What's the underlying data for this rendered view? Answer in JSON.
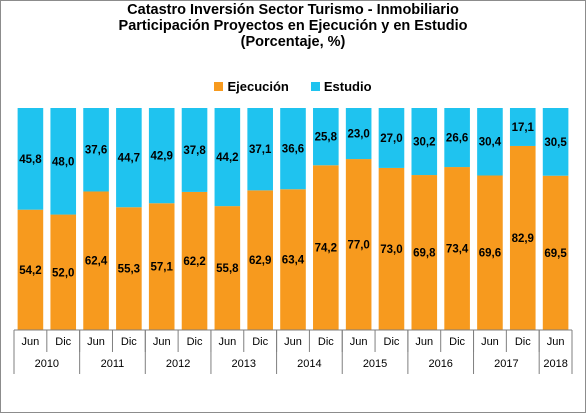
{
  "chart_data": {
    "type": "bar",
    "stacked": true,
    "title_lines": [
      "Catastro Inversión Sector Turismo - Inmobiliario",
      "Participación Proyectos en Ejecución y en Estudio",
      "(Porcentaje, %)"
    ],
    "legend_position": "top-center",
    "categories": [
      "Jun",
      "Dic",
      "Jun",
      "Dic",
      "Jun",
      "Dic",
      "Jun",
      "Dic",
      "Jun",
      "Dic",
      "Jun",
      "Dic",
      "Jun",
      "Dic",
      "Jun",
      "Dic",
      "Jun"
    ],
    "years": [
      {
        "label": "2010",
        "span": 2
      },
      {
        "label": "2011",
        "span": 2
      },
      {
        "label": "2012",
        "span": 2
      },
      {
        "label": "2013",
        "span": 2
      },
      {
        "label": "2014",
        "span": 2
      },
      {
        "label": "2015",
        "span": 2
      },
      {
        "label": "2016",
        "span": 2
      },
      {
        "label": "2017",
        "span": 2
      },
      {
        "label": "2018",
        "span": 1
      }
    ],
    "ylim": [
      0,
      100
    ],
    "grid": false,
    "series": [
      {
        "name": "Ejecución",
        "color": "#f79a1e",
        "values": [
          54.2,
          52.0,
          62.4,
          55.3,
          57.1,
          62.2,
          55.8,
          62.9,
          63.4,
          74.2,
          77.0,
          73.0,
          69.8,
          73.4,
          69.6,
          82.9,
          69.5
        ],
        "labels": [
          "54,2",
          "52,0",
          "62,4",
          "55,3",
          "57,1",
          "62,2",
          "55,8",
          "62,9",
          "63,4",
          "74,2",
          "77,0",
          "73,0",
          "69,8",
          "73,4",
          "69,6",
          "82,9",
          "69,5"
        ]
      },
      {
        "name": "Estudio",
        "color": "#1fc3ef",
        "values": [
          45.8,
          48.0,
          37.6,
          44.7,
          42.9,
          37.8,
          44.2,
          37.1,
          36.6,
          25.8,
          23.0,
          27.0,
          30.2,
          26.6,
          30.4,
          17.1,
          30.5
        ],
        "labels": [
          "45,8",
          "48,0",
          "37,6",
          "44,7",
          "42,9",
          "37,8",
          "44,2",
          "37,1",
          "36,6",
          "25,8",
          "23,0",
          "27,0",
          "30,2",
          "26,6",
          "30,4",
          "17,1",
          "30,5"
        ]
      }
    ]
  }
}
